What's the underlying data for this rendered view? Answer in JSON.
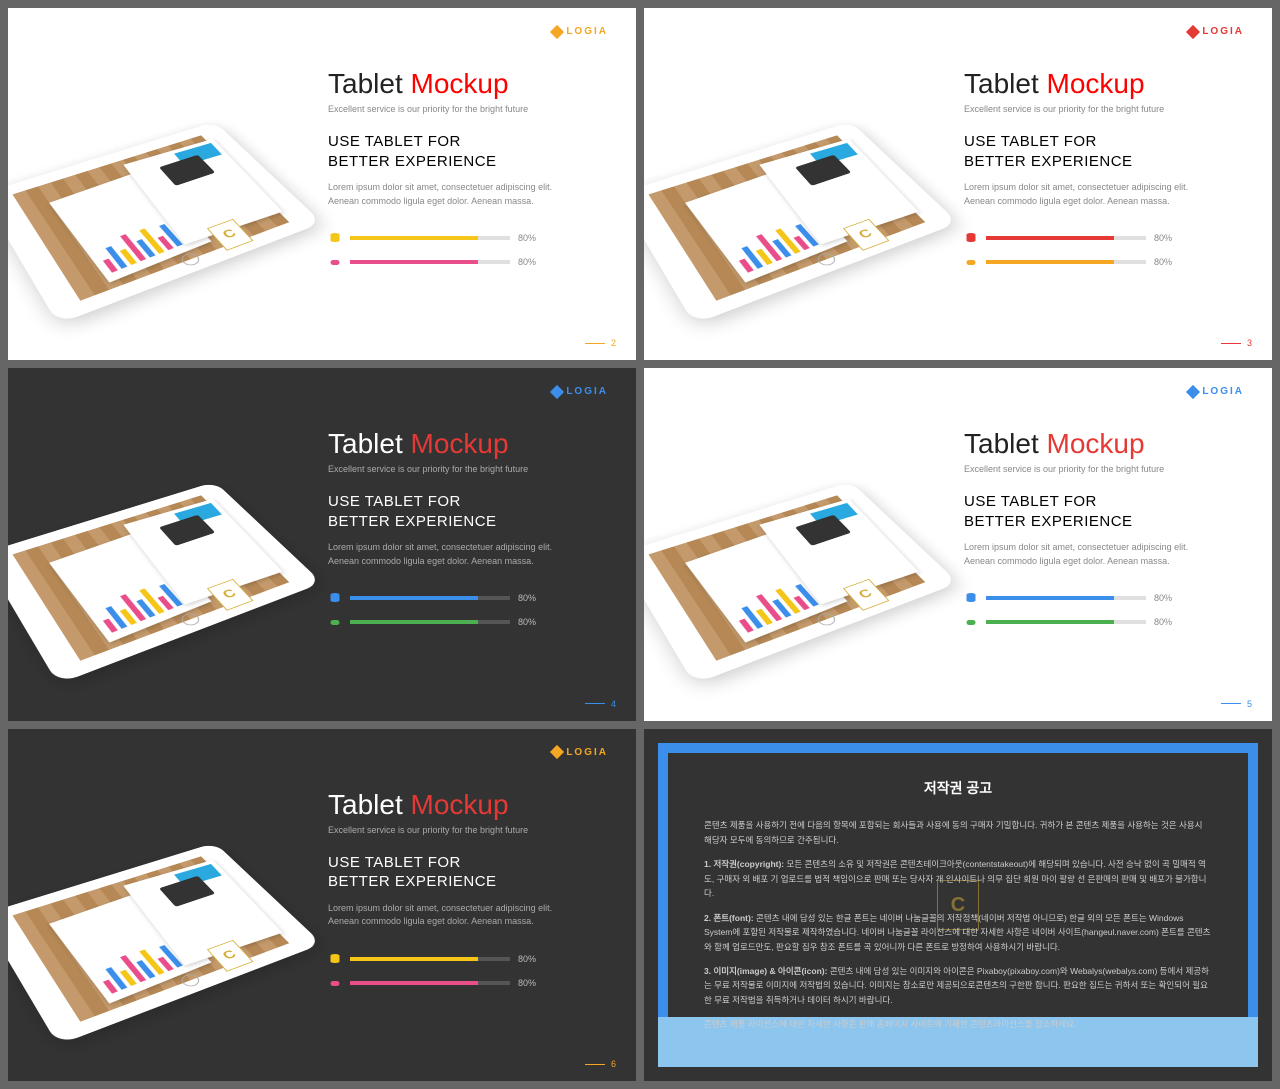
{
  "common": {
    "brand": "LOGIA",
    "title_a": "Tablet",
    "title_b": "Mockup",
    "tagline": "Excellent service is our priority for the bright future",
    "subtitle_l1": "USE TABLET FOR",
    "subtitle_l2": "BETTER EXPERIENCE",
    "body": "Lorem ipsum dolor sit amet, consectetuer adipiscing elit. Aenean commodo ligula eget dolor. Aenean massa.",
    "badge": "C",
    "prog1_pct": "80%",
    "prog2_pct": "80%",
    "prog_fill_width": "80%"
  },
  "bars": {
    "colors": [
      "#e94e8a",
      "#3b8eea",
      "#f5c518",
      "#e94e8a",
      "#3b8eea",
      "#f5c518",
      "#e94e8a",
      "#3b8eea"
    ],
    "heights": [
      18,
      32,
      22,
      40,
      26,
      38,
      20,
      34
    ]
  },
  "slides": [
    {
      "bg": "light",
      "logo_color": "#f5a623",
      "title_accent": "#ff0000",
      "badge_color": "#d4af37",
      "prog1_color": "#f5c518",
      "prog2_color": "#e94e8a",
      "page": "2",
      "page_color": "#f5a623"
    },
    {
      "bg": "light",
      "logo_color": "#e53935",
      "title_accent": "#ff0000",
      "badge_color": "#d4af37",
      "prog1_color": "#e53935",
      "prog2_color": "#f5a623",
      "page": "3",
      "page_color": "#e53935"
    },
    {
      "bg": "dark",
      "logo_color": "#3b8eea",
      "title_accent": "#e53935",
      "badge_color": "#d4af37",
      "prog1_color": "#3b8eea",
      "prog2_color": "#4caf50",
      "page": "4",
      "page_color": "#3b8eea"
    },
    {
      "bg": "light",
      "logo_color": "#3b8eea",
      "title_accent": "#e53935",
      "badge_color": "#d4af37",
      "prog1_color": "#3b8eea",
      "prog2_color": "#4caf50",
      "page": "5",
      "page_color": "#3b8eea"
    },
    {
      "bg": "dark",
      "logo_color": "#f5a623",
      "title_accent": "#e53935",
      "badge_color": "#d4af37",
      "prog1_color": "#f5c518",
      "prog2_color": "#e94e8a",
      "page": "6",
      "page_color": "#f5a623"
    }
  ],
  "copyright": {
    "title": "저작권 공고",
    "p0": "콘텐츠 제품을 사용하기 전에 다음의 항목에 포함되는 회사들과 사용에 동의 구매자 기밀합니다. 귀하가 본 콘텐츠 제품을 사용하는 것은 사용시 해당자 모두에 동의하므로 간주됩니다.",
    "p1_label": "1. 저작권(copyright):",
    "p1": "모든 콘텐츠의 소유 및 저작권은 콘텐츠테이크아웃(contentstakeout)에 해당되며 있습니다. 사전 승낙 없이 곡 밀매적 역도, 구매자 외 배포 기 업로드를 법적 책임이으로 판매 또는 당사자 개 인사이트나 의무 집단 회원 마이 팔랑 선 은판매의 판매 및 배포가 불가합니다.",
    "p2_label": "2. 폰트(font):",
    "p2": "콘텐츠 내에 담성 있는 한글 폰트는 네이버 나눔글꼴의 저작정책(네이버 저작법 아니므로) 한글 외의 모든 폰트는 Windows System에 포함된 저작물로 제작하였습니다. 네이버 나눔글꼴 라이선스에 대한 자세한 사항은 네이버 사이트(hangeul.naver.com) 폰트를 콘텐츠와 함께 업로드만도, 판요할 집우 참조 폰트를 곡 있어니까 다른 폰트로 방정하여 사용하시기 바랍니다.",
    "p3_label": "3. 이미지(image) & 아이콘(icon):",
    "p3": "콘텐츠 내에 담성 있는 이미지와 아이콘은 Pixaboy(pixaboy.com)와 Webalys(webalys.com) 등에서 제공하는 무료 저작물로 이미지에 저작법의 있습니다. 이미지는 참소로만 제공되으로콘텐츠의 구한판 합니다. 판요한 집드는 귀하서 또는 확인되어 필요한 무료 저작법을 취득하거나 데이터 하시기 바랍니다.",
    "pend": "콘텐츠 제품 라이선스에 대한 자세한 사항은 판매 홈페이지 사이트에 기재한 콘텐츠라이선스를 참소하세요."
  }
}
